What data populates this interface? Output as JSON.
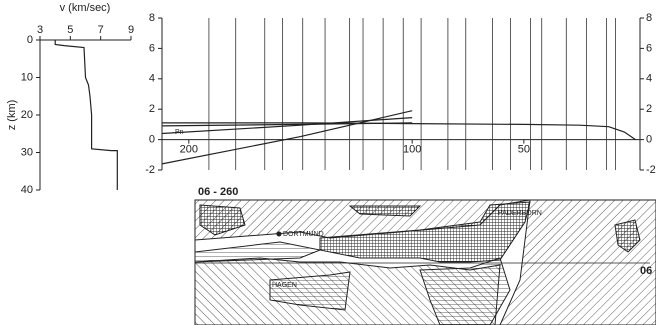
{
  "chart_data": [
    {
      "type": "line",
      "x_label": "v (km/sec)",
      "y_label": "z (km)",
      "xlim": [
        3,
        9
      ],
      "xticks": [
        3,
        5,
        7,
        9
      ],
      "ylim": [
        0,
        40
      ],
      "yticks": [
        0,
        10,
        20,
        30,
        40
      ],
      "y_inverted": true,
      "series": [
        {
          "color": "#222222",
          "x": [
            4.0,
            4.0,
            4.6,
            5.9,
            6.0,
            6.2,
            6.3,
            6.4,
            6.4,
            7.7,
            8.1,
            8.1
          ],
          "y": [
            0,
            1.2,
            1.5,
            2.0,
            10,
            12,
            15,
            20,
            29,
            29.5,
            29.5,
            40
          ]
        }
      ]
    },
    {
      "type": "line",
      "annotation": "Pn",
      "xlim": [
        212,
        -2
      ],
      "xticks": [
        200,
        100,
        50
      ],
      "ylim": [
        -2,
        8
      ],
      "yticks": [
        -2,
        0,
        2,
        4,
        6,
        8
      ],
      "traces": [
        191,
        179,
        166,
        158,
        149,
        139,
        128,
        122,
        113,
        104,
        96,
        84,
        76,
        64,
        56,
        47,
        42,
        31,
        22,
        13,
        9
      ],
      "trace_color": "#333333",
      "series": [
        {
          "color": "#222222",
          "x": [
            212,
            150,
            100,
            50,
            25,
            12,
            5,
            0
          ],
          "y": [
            1.1,
            1.1,
            1.05,
            1.0,
            0.95,
            0.85,
            0.5,
            0
          ]
        },
        {
          "color": "#222222",
          "x": [
            212,
            150,
            100
          ],
          "y": [
            0.4,
            0.95,
            1.45
          ]
        },
        {
          "color": "#222222",
          "x": [
            212,
            150,
            100
          ],
          "y": [
            -1.6,
            0.2,
            1.9
          ]
        },
        {
          "color": "#222222",
          "x": [
            212,
            150,
            100
          ],
          "y": [
            0.9,
            1.0,
            1.1
          ]
        }
      ]
    }
  ],
  "map": {
    "profile_label": "06 - 260",
    "cities": [
      "DORTMUND",
      "PADERBORN",
      "HAGEN"
    ],
    "end_label": "06"
  }
}
